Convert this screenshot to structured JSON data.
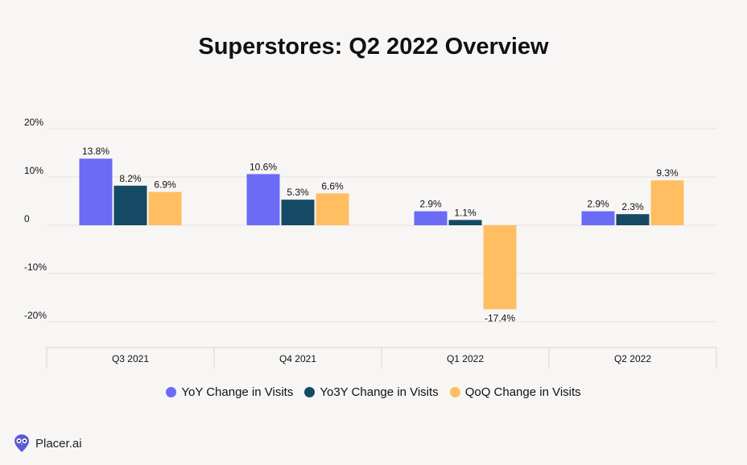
{
  "chart_data": {
    "type": "bar",
    "title": "Superstores: Q2 2022 Overview",
    "xlabel": "",
    "ylabel": "",
    "categories": [
      "Q3 2021",
      "Q4 2021",
      "Q1 2022",
      "Q2 2022"
    ],
    "ylim": [
      -25,
      20
    ],
    "yticks": [
      20,
      10,
      0,
      -10,
      -20
    ],
    "ytick_labels": [
      "20%",
      "10%",
      "0",
      "-10%",
      "-20%"
    ],
    "grid": true,
    "legend_position": "bottom",
    "series": [
      {
        "name": "YoY Change in Visits",
        "color": "#6b6bf6",
        "values": [
          13.8,
          10.6,
          2.9,
          2.9
        ],
        "labels": [
          "13.8%",
          "10.6%",
          "2.9%",
          "2.9%"
        ]
      },
      {
        "name": "Yo3Y Change in Visits",
        "color": "#144a63",
        "values": [
          8.2,
          5.3,
          1.1,
          2.3
        ],
        "labels": [
          "8.2%",
          "5.3%",
          "1.1%",
          "2.3%"
        ]
      },
      {
        "name": "QoQ Change in Visits",
        "color": "#ffbe62",
        "values": [
          6.9,
          6.6,
          -17.4,
          9.3
        ],
        "labels": [
          "6.9%",
          "6.6%",
          "-17.4%",
          "9.3%"
        ]
      }
    ]
  },
  "brand": {
    "name": "Placer.ai",
    "logo_icon": "owl-pin-icon"
  }
}
